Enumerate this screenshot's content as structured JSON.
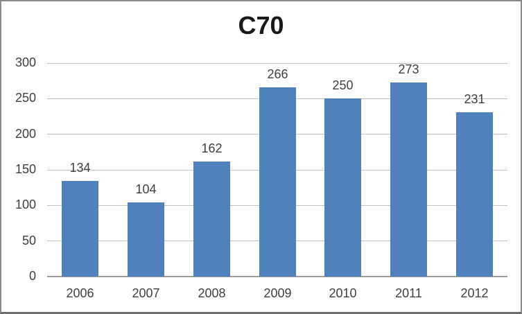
{
  "chart_data": {
    "type": "bar",
    "title": "C70",
    "categories": [
      "2006",
      "2007",
      "2008",
      "2009",
      "2010",
      "2011",
      "2012"
    ],
    "values": [
      134,
      104,
      162,
      266,
      250,
      273,
      231
    ],
    "series_name": "",
    "xlabel": "",
    "ylabel": "",
    "ylim": [
      0,
      300
    ],
    "yticks": [
      0,
      50,
      100,
      150,
      200,
      250,
      300
    ],
    "grid": "horizontal",
    "legend_position": "none",
    "data_labels": true,
    "colors": {
      "bar_fill": "#4f81bd",
      "gridline": "#c2c2c2",
      "axis_line": "#9c9c9c",
      "tick_text": "#3f3f3f",
      "title_text": "#1a1a1a",
      "frame_border": "#8a8a8a"
    }
  }
}
